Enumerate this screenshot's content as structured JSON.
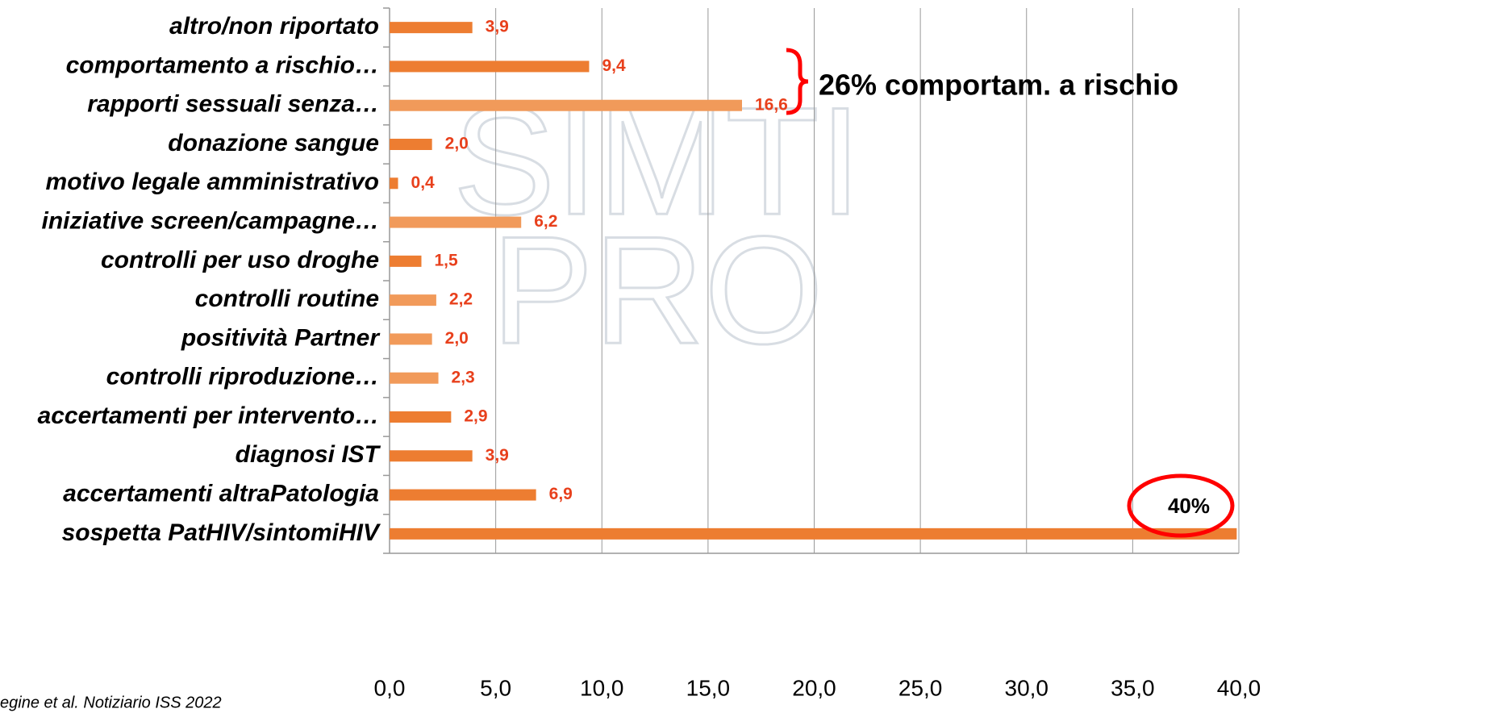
{
  "chart_data": {
    "type": "hbar",
    "categories": [
      "altro/non riportato",
      "comportamento a rischio…",
      "rapporti sessuali senza…",
      "donazione sangue",
      "motivo legale amministrativo",
      "iniziative screen/campagne…",
      "controlli per uso droghe",
      "controlli routine",
      "positività Partner",
      "controlli riproduzione…",
      "accertamenti per intervento…",
      "diagnosi IST",
      "accertamenti altraPatologia",
      "sospetta PatHIV/sintomiHIV"
    ],
    "values": [
      3.9,
      9.4,
      16.6,
      2.0,
      0.4,
      6.2,
      1.5,
      2.2,
      2.0,
      2.3,
      2.9,
      3.9,
      6.9,
      39.9
    ],
    "value_labels": [
      "3,9",
      "9,4",
      "16,6",
      "2,0",
      "0,4",
      "6,2",
      "1,5",
      "2,2",
      "2,0",
      "2,3",
      "2,9",
      "3,9",
      "6,9",
      null
    ],
    "colors": [
      "#ED7D31",
      "#ED7D31",
      "#F19A5A",
      "#ED7D31",
      "#ED7D31",
      "#F19A5A",
      "#ED7D31",
      "#F19A5A",
      "#F19A5A",
      "#F19A5A",
      "#ED7D31",
      "#ED7D31",
      "#ED7D31",
      "#ED7D31"
    ],
    "xlim": [
      0,
      40
    ],
    "xticks": [
      {
        "value": 0,
        "label": "0,0"
      },
      {
        "value": 5,
        "label": "5,0"
      },
      {
        "value": 10,
        "label": "10,0"
      },
      {
        "value": 15,
        "label": "15,0"
      },
      {
        "value": 20,
        "label": "20,0"
      },
      {
        "value": 25,
        "label": "25,0"
      },
      {
        "value": 30,
        "label": "30,0"
      },
      {
        "value": 35,
        "label": "35,0"
      },
      {
        "value": 40,
        "label": "40,0"
      }
    ],
    "grid": true,
    "annotations": [
      "26% comportam. a rischio",
      "40%"
    ],
    "source": "egine et al. Notiziario ISS 2022",
    "watermark": [
      "SIMTI",
      "PRO"
    ]
  }
}
